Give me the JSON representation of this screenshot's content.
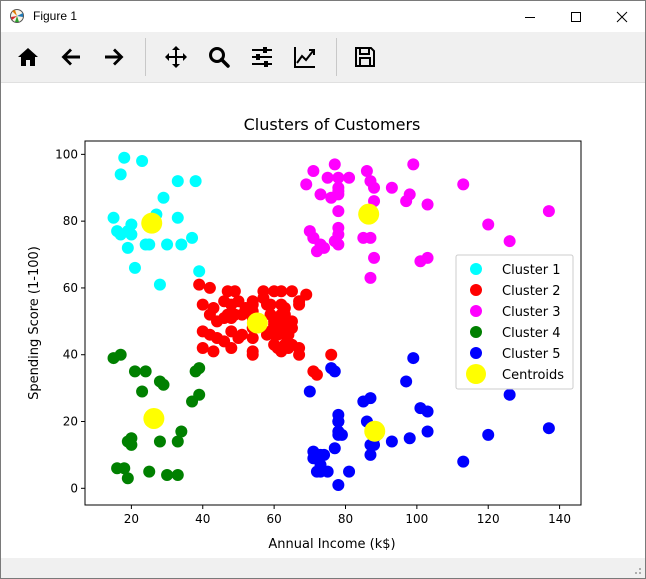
{
  "window": {
    "title": "Figure 1"
  },
  "toolbar": {
    "buttons": [
      {
        "name": "home-button",
        "icon": "home-icon"
      },
      {
        "name": "back-button",
        "icon": "arrow-left-icon"
      },
      {
        "name": "forward-button",
        "icon": "arrow-right-icon"
      },
      {
        "name": "pan-button",
        "icon": "move-icon"
      },
      {
        "name": "zoom-button",
        "icon": "zoom-icon"
      },
      {
        "name": "configure-subplots-button",
        "icon": "sliders-icon"
      },
      {
        "name": "edit-axis-button",
        "icon": "chart-line-icon"
      },
      {
        "name": "save-button",
        "icon": "save-icon"
      }
    ]
  },
  "chart_data": {
    "type": "scatter",
    "title": "Clusters of Customers",
    "xlabel": "Annual Income (k$)",
    "ylabel": "Spending Score (1-100)",
    "xlim": [
      7,
      146
    ],
    "ylim": [
      -5,
      104
    ],
    "xticks": [
      20,
      40,
      60,
      80,
      100,
      120,
      140
    ],
    "yticks": [
      0,
      20,
      40,
      60,
      80,
      100
    ],
    "grid": false,
    "legend_position": "center-right",
    "series": [
      {
        "name": "Cluster 1",
        "color": "#00ffff",
        "points": [
          [
            15,
            81
          ],
          [
            16,
            77
          ],
          [
            17,
            76
          ],
          [
            17,
            94
          ],
          [
            18,
            99
          ],
          [
            19,
            72
          ],
          [
            19,
            77
          ],
          [
            20,
            79
          ],
          [
            20,
            76
          ],
          [
            21,
            66
          ],
          [
            23,
            98
          ],
          [
            24,
            73
          ],
          [
            25,
            73
          ],
          [
            25,
            80
          ],
          [
            27,
            82
          ],
          [
            28,
            61
          ],
          [
            29,
            87
          ],
          [
            30,
            73
          ],
          [
            33,
            92
          ],
          [
            33,
            81
          ],
          [
            34,
            73
          ],
          [
            37,
            75
          ],
          [
            38,
            92
          ],
          [
            39,
            65
          ]
        ]
      },
      {
        "name": "Cluster 2",
        "color": "#ff0000",
        "points": [
          [
            39,
            61
          ],
          [
            40,
            55
          ],
          [
            40,
            47
          ],
          [
            40,
            42
          ],
          [
            42,
            60
          ],
          [
            42,
            52
          ],
          [
            42,
            46
          ],
          [
            43,
            54
          ],
          [
            43,
            41
          ],
          [
            44,
            50
          ],
          [
            44,
            45
          ],
          [
            46,
            51
          ],
          [
            46,
            56
          ],
          [
            46,
            44
          ],
          [
            47,
            52
          ],
          [
            47,
            59
          ],
          [
            48,
            47
          ],
          [
            48,
            55
          ],
          [
            48,
            42
          ],
          [
            48,
            51
          ],
          [
            49,
            52
          ],
          [
            49,
            59
          ],
          [
            50,
            56
          ],
          [
            50,
            45
          ],
          [
            51,
            46
          ],
          [
            51,
            52
          ],
          [
            52,
            54
          ],
          [
            54,
            55
          ],
          [
            54,
            45
          ],
          [
            54,
            41
          ],
          [
            54,
            48
          ],
          [
            54,
            53
          ],
          [
            54,
            56
          ],
          [
            54,
            40
          ],
          [
            54,
            51
          ],
          [
            57,
            57
          ],
          [
            57,
            59
          ],
          [
            58,
            46
          ],
          [
            58,
            55
          ],
          [
            59,
            52
          ],
          [
            59,
            47
          ],
          [
            59,
            55
          ],
          [
            60,
            50
          ],
          [
            60,
            43
          ],
          [
            60,
            59
          ],
          [
            60,
            46
          ],
          [
            60,
            49
          ],
          [
            61,
            46
          ],
          [
            61,
            42
          ],
          [
            62,
            52
          ],
          [
            62,
            59
          ],
          [
            62,
            48
          ],
          [
            62,
            55
          ],
          [
            62,
            41
          ],
          [
            63,
            50
          ],
          [
            63,
            46
          ],
          [
            63,
            43
          ],
          [
            63,
            48
          ],
          [
            63,
            52
          ],
          [
            63,
            54
          ],
          [
            64,
            42
          ],
          [
            64,
            46
          ],
          [
            65,
            48
          ],
          [
            65,
            50
          ],
          [
            65,
            43
          ],
          [
            65,
            59
          ],
          [
            67,
            55
          ],
          [
            67,
            56
          ],
          [
            67,
            40
          ],
          [
            67,
            42
          ],
          [
            69,
            58
          ],
          [
            71,
            35
          ],
          [
            72,
            34
          ],
          [
            76,
            40
          ]
        ]
      },
      {
        "name": "Cluster 3",
        "color": "#ff00ff",
        "points": [
          [
            69,
            91
          ],
          [
            70,
            77
          ],
          [
            71,
            95
          ],
          [
            71,
            75
          ],
          [
            71,
            75
          ],
          [
            72,
            71
          ],
          [
            73,
            88
          ],
          [
            73,
            73
          ],
          [
            74,
            72
          ],
          [
            75,
            93
          ],
          [
            76,
            87
          ],
          [
            77,
            97
          ],
          [
            77,
            74
          ],
          [
            78,
            90
          ],
          [
            78,
            88
          ],
          [
            78,
            76
          ],
          [
            78,
            89
          ],
          [
            78,
            78
          ],
          [
            78,
            73
          ],
          [
            78,
            83
          ],
          [
            78,
            93
          ],
          [
            81,
            93
          ],
          [
            85,
            75
          ],
          [
            86,
            95
          ],
          [
            87,
            63
          ],
          [
            87,
            75
          ],
          [
            87,
            92
          ],
          [
            88,
            86
          ],
          [
            88,
            69
          ],
          [
            88,
            90
          ],
          [
            93,
            90
          ],
          [
            97,
            86
          ],
          [
            98,
            88
          ],
          [
            99,
            97
          ],
          [
            101,
            68
          ],
          [
            103,
            85
          ],
          [
            103,
            69
          ],
          [
            113,
            91
          ],
          [
            120,
            79
          ],
          [
            126,
            74
          ],
          [
            137,
            83
          ]
        ]
      },
      {
        "name": "Cluster 4",
        "color": "#008000",
        "points": [
          [
            15,
            39
          ],
          [
            16,
            6
          ],
          [
            17,
            40
          ],
          [
            18,
            6
          ],
          [
            19,
            3
          ],
          [
            19,
            14
          ],
          [
            20,
            15
          ],
          [
            20,
            13
          ],
          [
            21,
            35
          ],
          [
            23,
            29
          ],
          [
            24,
            35
          ],
          [
            25,
            5
          ],
          [
            28,
            14
          ],
          [
            28,
            32
          ],
          [
            29,
            31
          ],
          [
            30,
            4
          ],
          [
            33,
            4
          ],
          [
            33,
            14
          ],
          [
            34,
            17
          ],
          [
            37,
            26
          ],
          [
            38,
            35
          ],
          [
            39,
            36
          ],
          [
            39,
            28
          ]
        ]
      },
      {
        "name": "Cluster 5",
        "color": "#0000ff",
        "points": [
          [
            70,
            29
          ],
          [
            71,
            11
          ],
          [
            71,
            9
          ],
          [
            72,
            5
          ],
          [
            73,
            5
          ],
          [
            73,
            7
          ],
          [
            73,
            10
          ],
          [
            74,
            10
          ],
          [
            75,
            5
          ],
          [
            76,
            36
          ],
          [
            77,
            12
          ],
          [
            77,
            35
          ],
          [
            78,
            22
          ],
          [
            78,
            17
          ],
          [
            78,
            20
          ],
          [
            78,
            16
          ],
          [
            78,
            1
          ],
          [
            78,
            20
          ],
          [
            79,
            16
          ],
          [
            81,
            5
          ],
          [
            85,
            26
          ],
          [
            86,
            20
          ],
          [
            87,
            27
          ],
          [
            87,
            13
          ],
          [
            87,
            10
          ],
          [
            88,
            13
          ],
          [
            88,
            15
          ],
          [
            93,
            14
          ],
          [
            97,
            32
          ],
          [
            98,
            15
          ],
          [
            99,
            39
          ],
          [
            101,
            24
          ],
          [
            103,
            17
          ],
          [
            103,
            23
          ],
          [
            113,
            8
          ],
          [
            120,
            16
          ],
          [
            126,
            28
          ],
          [
            137,
            18
          ]
        ]
      },
      {
        "name": "Centroids",
        "color": "#ffff00",
        "large": true,
        "points": [
          [
            25.7,
            79.4
          ],
          [
            55.3,
            49.5
          ],
          [
            86.5,
            82.1
          ],
          [
            26.3,
            20.9
          ],
          [
            88.2,
            17.1
          ]
        ]
      }
    ]
  }
}
